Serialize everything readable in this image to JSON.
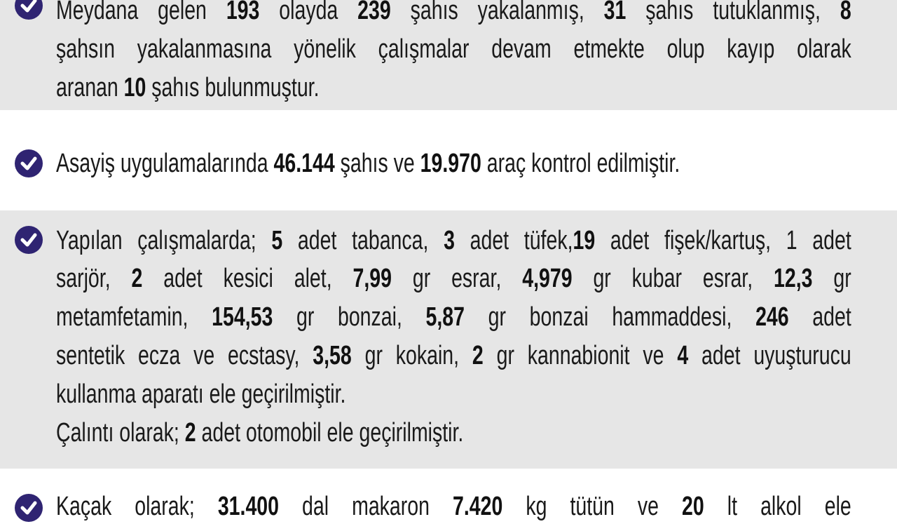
{
  "colors": {
    "band": "#e6e6e6",
    "icon": "#2f2472",
    "text": "#1a1a1a"
  },
  "icon": "check-circle-icon",
  "blocks": [
    {
      "lines": [
        [
          {
            "t": "Meydana gelen "
          },
          {
            "t": "193",
            "b": true
          },
          {
            "t": " olayda "
          },
          {
            "t": "239",
            "b": true
          },
          {
            "t": " şahıs yakalanmış, "
          },
          {
            "t": "31",
            "b": true
          },
          {
            "t": " şahıs tutuklanmış, "
          },
          {
            "t": "8",
            "b": true
          }
        ],
        [
          {
            "t": "şahsın yakalanmasına yönelik çalışmalar devam etmekte olup kayıp olarak"
          }
        ],
        [
          {
            "t": "aranan "
          },
          {
            "t": "10",
            "b": true
          },
          {
            "t": " şahıs bulunmuştur."
          }
        ]
      ]
    },
    {
      "lines": [
        [
          {
            "t": "Asayiş uygulamalarında "
          },
          {
            "t": "46.144",
            "b": true
          },
          {
            "t": " şahıs ve "
          },
          {
            "t": "19.970",
            "b": true
          },
          {
            "t": " araç kontrol edilmiştir."
          }
        ]
      ]
    },
    {
      "lines": [
        [
          {
            "t": "Yapılan çalışmalarda; "
          },
          {
            "t": "5",
            "b": true
          },
          {
            "t": " adet tabanca, "
          },
          {
            "t": "3",
            "b": true
          },
          {
            "t": " adet tüfek,"
          },
          {
            "t": "19",
            "b": true
          },
          {
            "t": " adet fişek/kartuş, 1 adet"
          }
        ],
        [
          {
            "t": "sarjör, "
          },
          {
            "t": "2",
            "b": true
          },
          {
            "t": " adet kesici alet, "
          },
          {
            "t": "7,99",
            "b": true
          },
          {
            "t": " gr esrar, "
          },
          {
            "t": "4,979",
            "b": true
          },
          {
            "t": " gr kubar esrar, "
          },
          {
            "t": "12,3",
            "b": true
          },
          {
            "t": " gr"
          }
        ],
        [
          {
            "t": "metamfetamin, "
          },
          {
            "t": "154,53",
            "b": true
          },
          {
            "t": " gr bonzai, "
          },
          {
            "t": "5,87",
            "b": true
          },
          {
            "t": " gr bonzai hammaddesi, "
          },
          {
            "t": "246",
            "b": true
          },
          {
            "t": " adet"
          }
        ],
        [
          {
            "t": "sentetik ecza ve ecstasy, "
          },
          {
            "t": "3,58",
            "b": true
          },
          {
            "t": " gr kokain, "
          },
          {
            "t": "2",
            "b": true
          },
          {
            "t": " gr kannabionit ve "
          },
          {
            "t": "4",
            "b": true
          },
          {
            "t": " adet uyuşturucu"
          }
        ],
        [
          {
            "t": "kullanma aparatı  ele geçirilmiştir."
          }
        ],
        [
          {
            "t": "Çalıntı olarak;  "
          },
          {
            "t": "2",
            "b": true
          },
          {
            "t": " adet otomobil ele geçirilmiştir."
          }
        ]
      ]
    },
    {
      "lines": [
        [
          {
            "t": "Kaçak olarak; "
          },
          {
            "t": "31.400",
            "b": true
          },
          {
            "t": " dal makaron "
          },
          {
            "t": "7.420",
            "b": true
          },
          {
            "t": " kg tütün ve "
          },
          {
            "t": "20",
            "b": true
          },
          {
            "t": " lt alkol ele"
          }
        ]
      ]
    }
  ]
}
